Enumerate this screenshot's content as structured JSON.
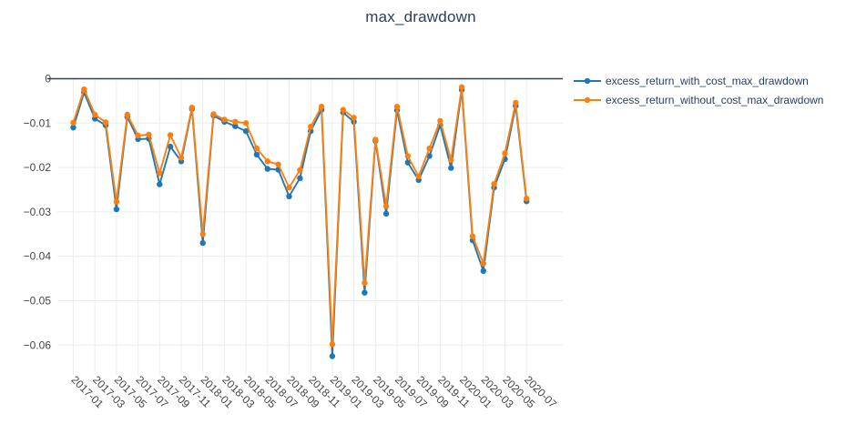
{
  "page": {
    "title": "max_drawdown"
  },
  "chart_data": {
    "type": "line",
    "title": "max_drawdown",
    "xlabel": "",
    "ylabel": "",
    "grid": true,
    "legend_position": "right",
    "ylim": [
      -0.0667,
      0
    ],
    "x": [
      "2017-01",
      "2017-02",
      "2017-03",
      "2017-04",
      "2017-05",
      "2017-06",
      "2017-07",
      "2017-08",
      "2017-09",
      "2017-10",
      "2017-11",
      "2017-12",
      "2018-01",
      "2018-02",
      "2018-03",
      "2018-04",
      "2018-05",
      "2018-06",
      "2018-07",
      "2018-08",
      "2018-09",
      "2018-10",
      "2018-11",
      "2018-12",
      "2019-01",
      "2019-02",
      "2019-03",
      "2019-04",
      "2019-05",
      "2019-06",
      "2019-07",
      "2019-08",
      "2019-09",
      "2019-10",
      "2019-11",
      "2019-12",
      "2020-01",
      "2020-02",
      "2020-03",
      "2020-04",
      "2020-05",
      "2020-06",
      "2020-07"
    ],
    "x_tick_labels": [
      "2017-01",
      "2017-03",
      "2017-05",
      "2017-07",
      "2017-09",
      "2017-11",
      "2018-01",
      "2018-03",
      "2018-05",
      "2018-07",
      "2018-09",
      "2018-11",
      "2019-01",
      "2019-03",
      "2019-05",
      "2019-07",
      "2019-09",
      "2019-11",
      "2020-01",
      "2020-03",
      "2020-05",
      "2020-07"
    ],
    "y_tick_values": [
      0,
      -0.01,
      -0.02,
      -0.03,
      -0.04,
      -0.05,
      -0.06
    ],
    "y_tick_labels": [
      "0",
      "−0.01",
      "−0.02",
      "−0.03",
      "−0.04",
      "−0.05",
      "−0.06"
    ],
    "series": [
      {
        "name": "excess_return_with_cost_max_drawdown",
        "color": "#1f77b4",
        "values": [
          -0.011,
          -0.0031,
          -0.009,
          -0.0105,
          -0.0294,
          -0.0086,
          -0.0136,
          -0.0135,
          -0.0238,
          -0.0153,
          -0.0186,
          -0.0068,
          -0.037,
          -0.0083,
          -0.0097,
          -0.0107,
          -0.0118,
          -0.0171,
          -0.0203,
          -0.0205,
          -0.0265,
          -0.0224,
          -0.0118,
          -0.007,
          -0.0625,
          -0.0076,
          -0.0097,
          -0.0482,
          -0.014,
          -0.0304,
          -0.0071,
          -0.0189,
          -0.0228,
          -0.0174,
          -0.0105,
          -0.0201,
          -0.0025,
          -0.0364,
          -0.0433,
          -0.0245,
          -0.0181,
          -0.0061,
          -0.0276
        ]
      },
      {
        "name": "excess_return_without_cost_max_drawdown",
        "color": "#ff7f0e",
        "values": [
          -0.0099,
          -0.0024,
          -0.0081,
          -0.0098,
          -0.0277,
          -0.0081,
          -0.0128,
          -0.0126,
          -0.0213,
          -0.0127,
          -0.0178,
          -0.0065,
          -0.035,
          -0.008,
          -0.0092,
          -0.0097,
          -0.01,
          -0.0157,
          -0.0186,
          -0.0193,
          -0.0245,
          -0.0206,
          -0.0108,
          -0.0063,
          -0.0598,
          -0.007,
          -0.0088,
          -0.046,
          -0.0137,
          -0.0287,
          -0.0063,
          -0.0174,
          -0.022,
          -0.0157,
          -0.0095,
          -0.0183,
          -0.0019,
          -0.0355,
          -0.0416,
          -0.0237,
          -0.0168,
          -0.0054,
          -0.027
        ]
      }
    ]
  }
}
